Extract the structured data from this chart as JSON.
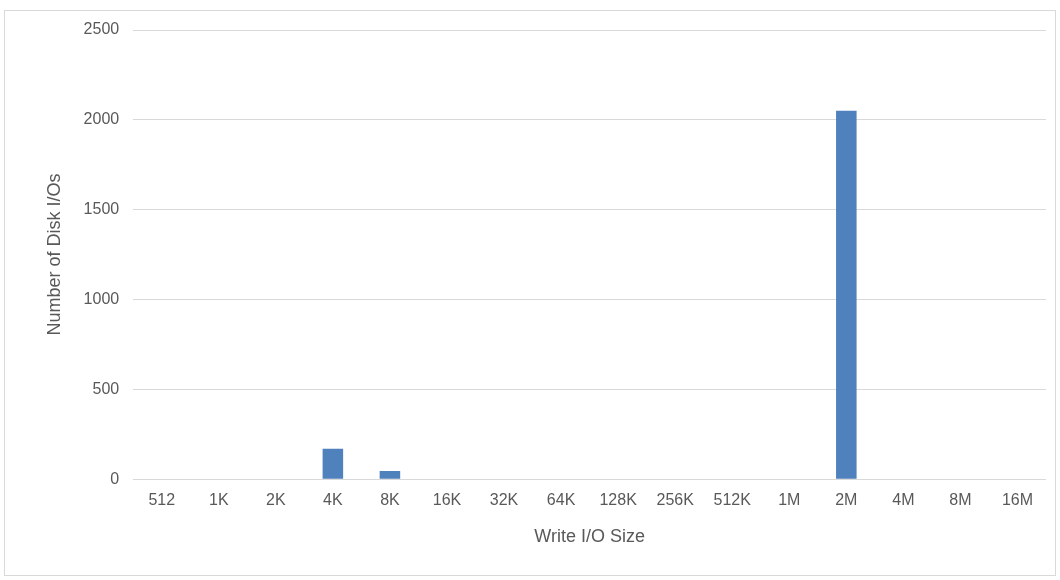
{
  "chart_data": {
    "type": "bar",
    "xlabel": "Write I/O Size",
    "ylabel": "Number of Disk I/Os",
    "categories": [
      "512",
      "1K",
      "2K",
      "4K",
      "8K",
      "16K",
      "32K",
      "64K",
      "128K",
      "256K",
      "512K",
      "1M",
      "2M",
      "4M",
      "8M",
      "16M"
    ],
    "values": [
      0,
      0,
      0,
      170,
      45,
      0,
      0,
      0,
      0,
      0,
      0,
      0,
      2050,
      0,
      0,
      0
    ],
    "color": "#4f81bd",
    "ylim": [
      0,
      2500
    ],
    "yticks": [
      0,
      500,
      1000,
      1500,
      2000,
      2500
    ],
    "grid": "y",
    "legend": false
  }
}
